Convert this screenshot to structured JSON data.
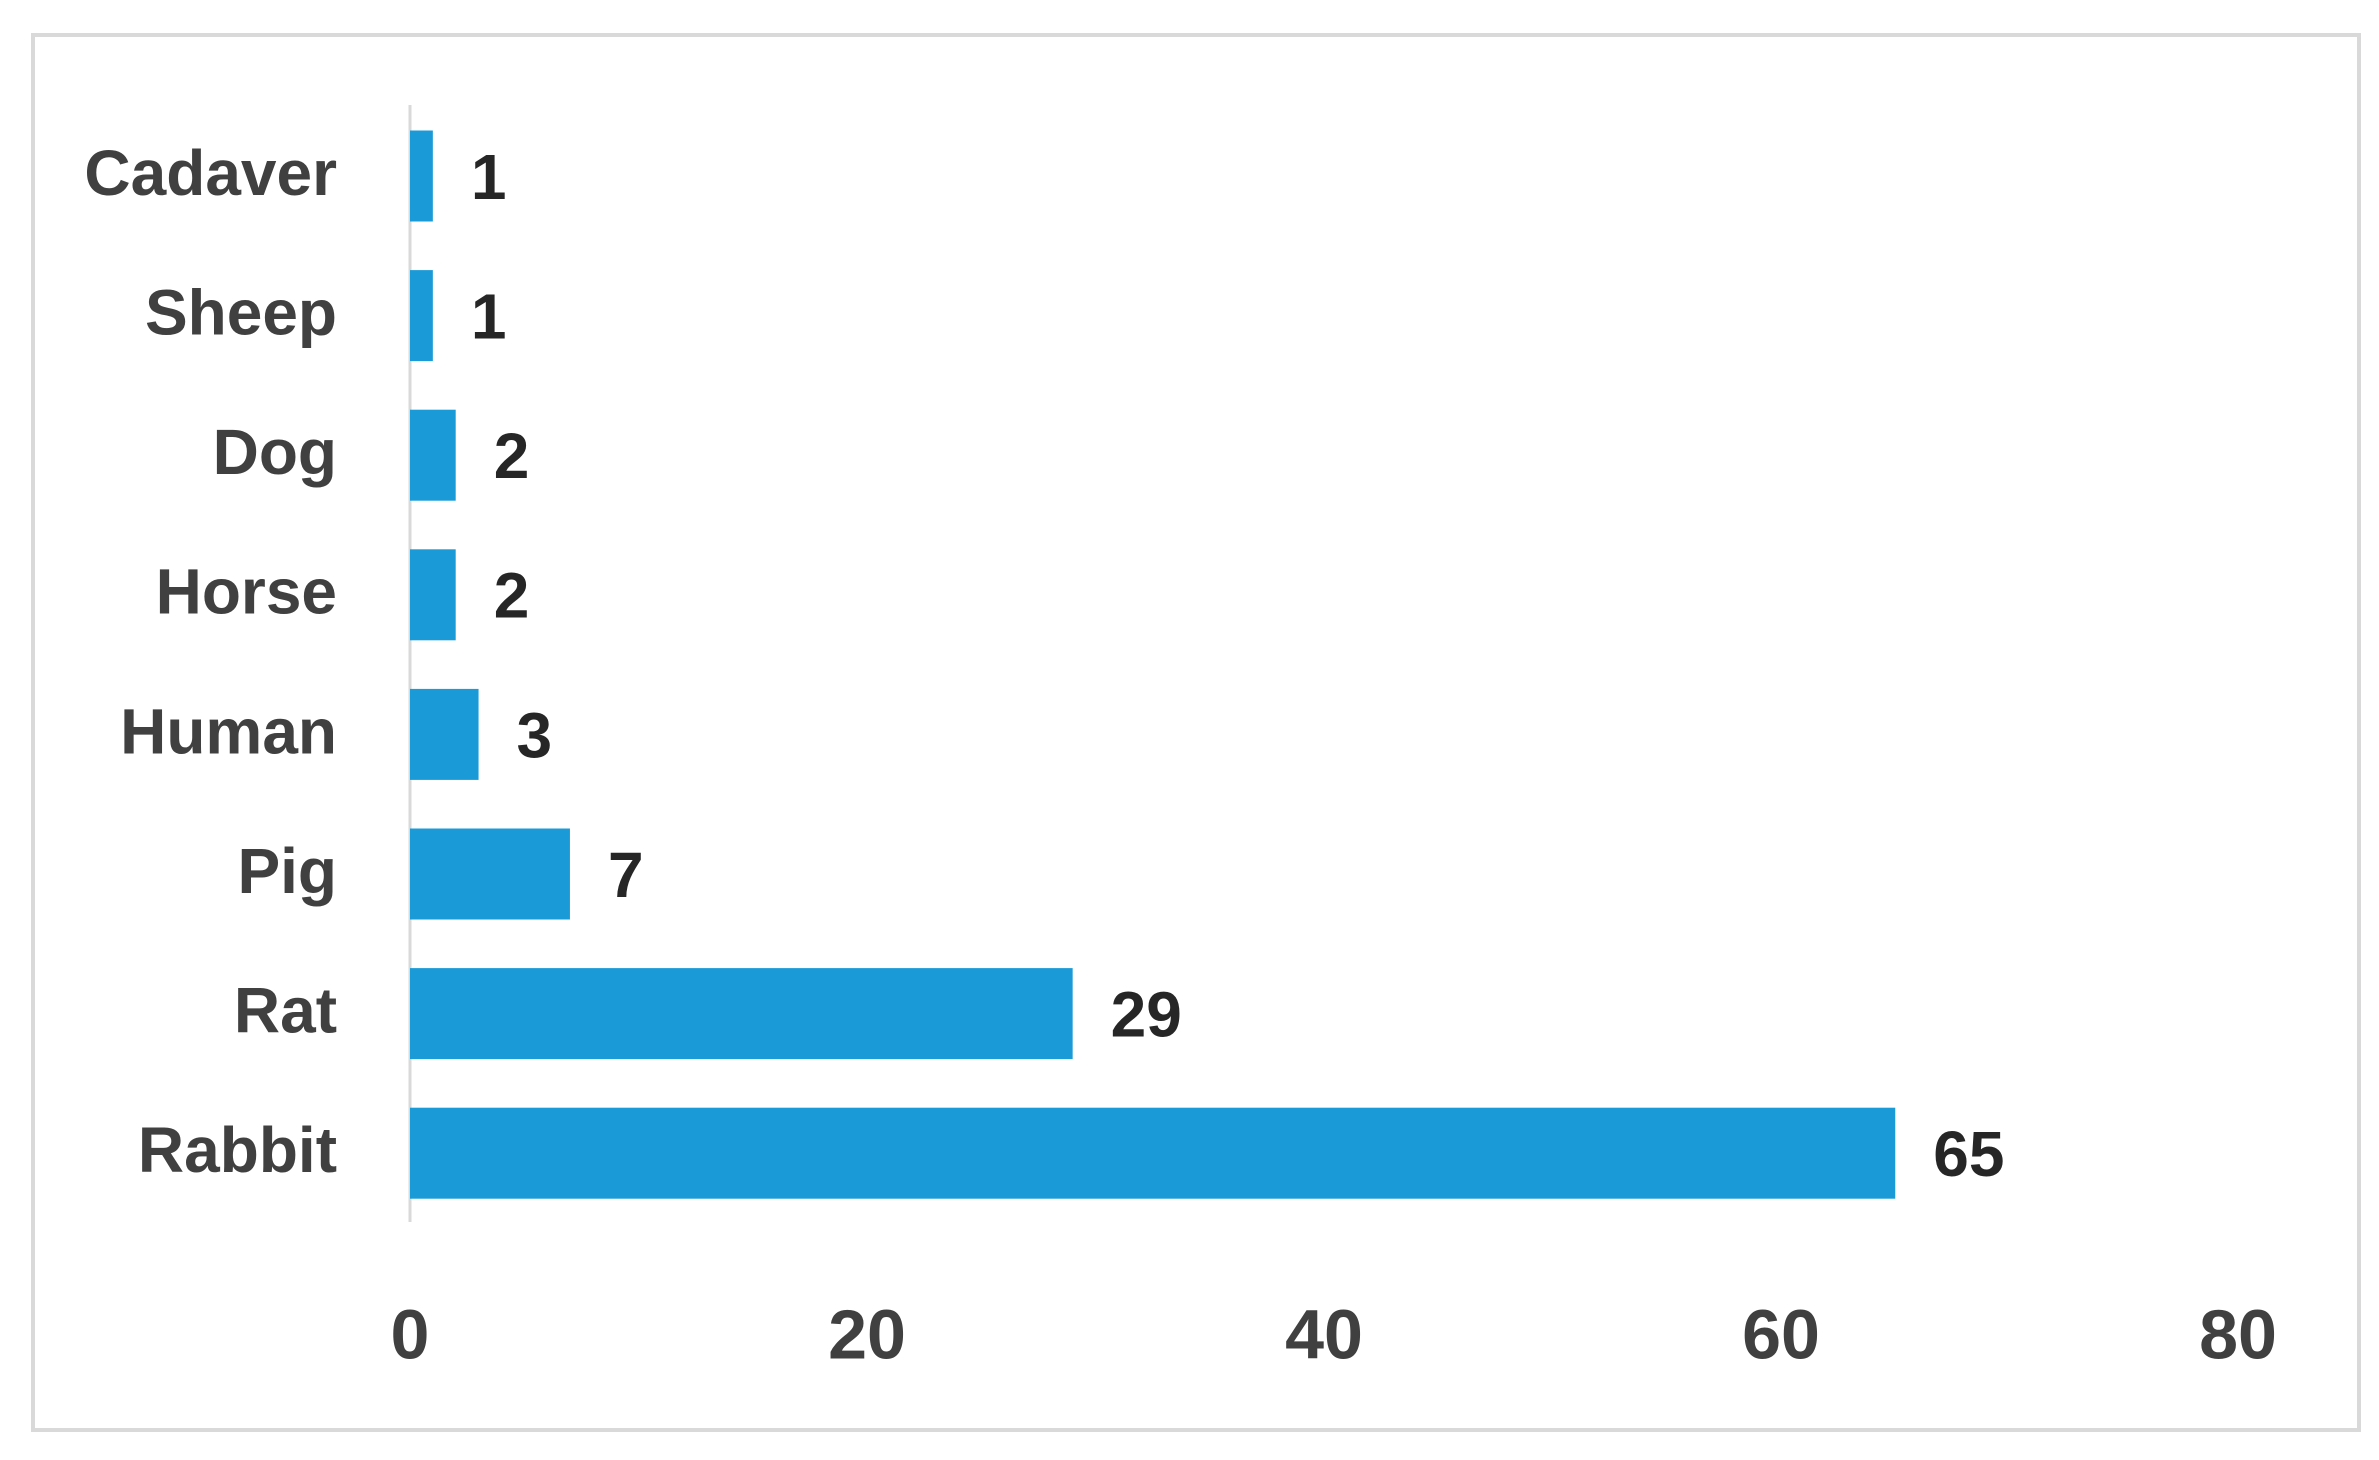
{
  "chart_data": {
    "type": "bar",
    "orientation": "horizontal",
    "categories": [
      "Cadaver",
      "Sheep",
      "Dog",
      "Horse",
      "Human",
      "Pig",
      "Rat",
      "Rabbit"
    ],
    "values": [
      1,
      1,
      2,
      2,
      3,
      7,
      29,
      65
    ],
    "color": "#1a9bd7",
    "xlim": [
      0,
      80
    ],
    "xticks": [
      0,
      20,
      40,
      60,
      80
    ],
    "grid": false
  }
}
